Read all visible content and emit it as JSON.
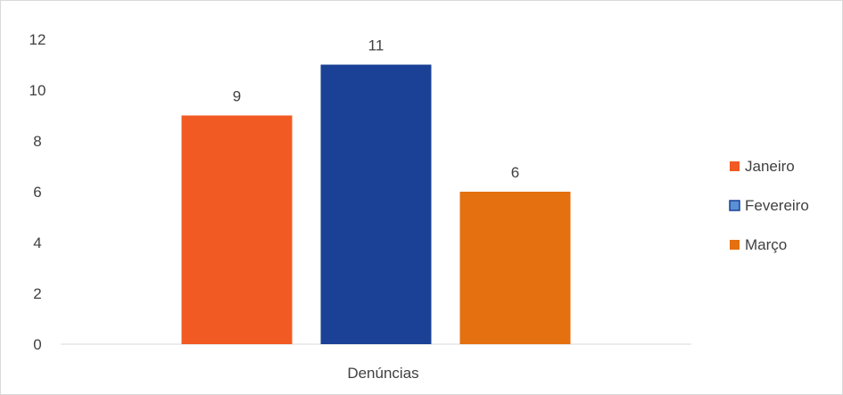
{
  "chart_data": {
    "type": "bar",
    "categories": [
      "Denúncias"
    ],
    "series": [
      {
        "name": "Janeiro",
        "values": [
          9
        ],
        "color": "#f15a22"
      },
      {
        "name": "Fevereiro",
        "values": [
          11
        ],
        "color": "#1a4196"
      },
      {
        "name": "Março",
        "values": [
          6
        ],
        "color": "#e5700f"
      }
    ],
    "ylim": [
      0,
      12
    ],
    "yticks": [
      0,
      2,
      4,
      6,
      8,
      10,
      12
    ],
    "title": "",
    "xlabel": "",
    "ylabel": "",
    "grid": false,
    "data_labels": true,
    "legend_position": "right"
  }
}
